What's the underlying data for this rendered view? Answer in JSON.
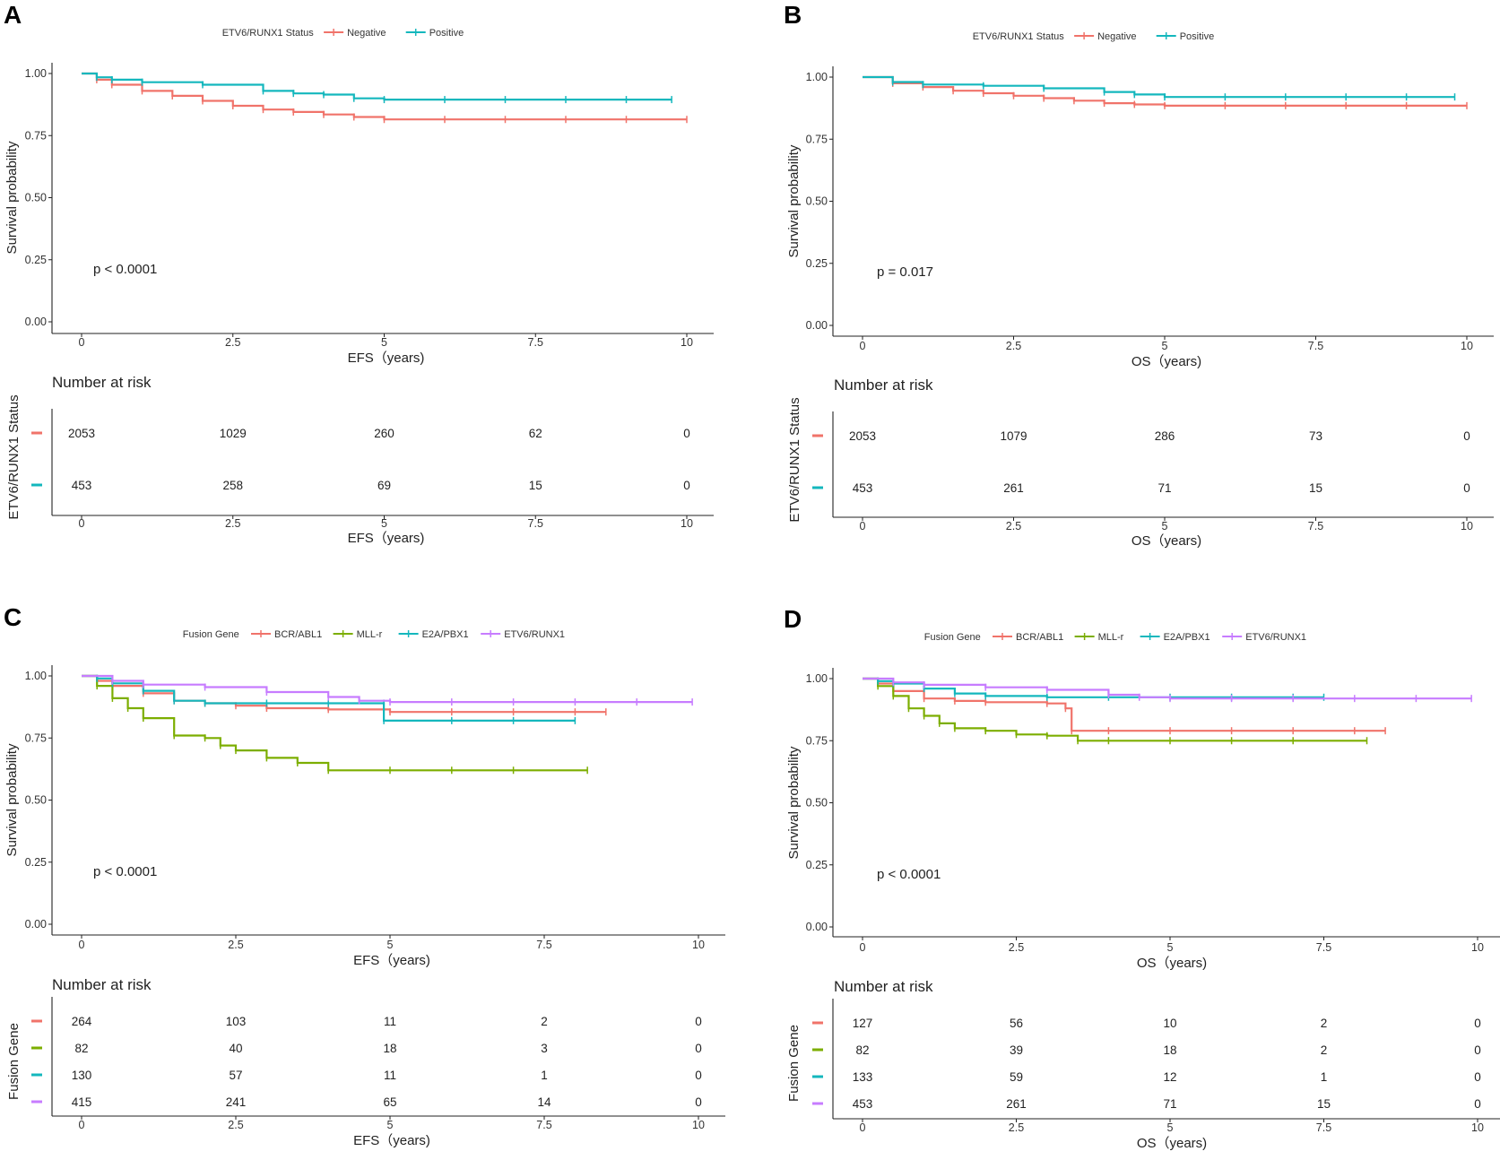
{
  "chart_data": [
    {
      "panel": "A",
      "type": "line",
      "subtype": "kaplan-meier",
      "legend_title": "ETV6/RUNX1 Status",
      "legend_position": "top",
      "series": [
        {
          "name": "Negative",
          "color": "#F0736A",
          "x": [
            0,
            0.25,
            0.5,
            1.0,
            1.5,
            2.0,
            2.5,
            3.0,
            3.5,
            4.0,
            4.5,
            5.0,
            6.0,
            7.0,
            8.0,
            9.0,
            10.0
          ],
          "y": [
            1.0,
            0.975,
            0.955,
            0.93,
            0.91,
            0.89,
            0.87,
            0.855,
            0.845,
            0.835,
            0.825,
            0.815,
            0.815,
            0.815,
            0.815,
            0.815,
            0.815
          ]
        },
        {
          "name": "Positive",
          "color": "#14B7BD",
          "x": [
            0,
            0.25,
            0.5,
            1.0,
            2.0,
            3.0,
            3.5,
            4.0,
            4.5,
            5.0,
            6.0,
            7.0,
            8.0,
            9.0,
            9.75
          ],
          "y": [
            1.0,
            0.985,
            0.975,
            0.965,
            0.955,
            0.93,
            0.92,
            0.915,
            0.9,
            0.895,
            0.895,
            0.895,
            0.895,
            0.895,
            0.895
          ]
        }
      ],
      "xlabel": "EFS（years)",
      "ylabel": "Survival probability",
      "xlim": [
        0,
        10
      ],
      "ylim": [
        0,
        1
      ],
      "xticks": [
        "0",
        "2.5",
        "5",
        "7.5",
        "10"
      ],
      "yticks": [
        "0.00",
        "0.25",
        "0.50",
        "0.75",
        "1.00"
      ],
      "p_value": "p < 0.0001",
      "risk_table": {
        "title": "Number at risk",
        "ylabel": "ETV6/RUNX1 Status",
        "xlabel": "EFS（years)",
        "rows": [
          {
            "series": "Negative",
            "values": [
              "2053",
              "1029",
              "260",
              "62",
              "0"
            ]
          },
          {
            "series": "Positive",
            "values": [
              "453",
              "258",
              "69",
              "15",
              "0"
            ]
          }
        ]
      }
    },
    {
      "panel": "B",
      "type": "line",
      "subtype": "kaplan-meier",
      "legend_title": "ETV6/RUNX1 Status",
      "legend_position": "top",
      "series": [
        {
          "name": "Negative",
          "color": "#F0736A",
          "x": [
            0,
            0.5,
            1.0,
            1.5,
            2.0,
            2.5,
            3.0,
            3.5,
            4.0,
            4.5,
            5.0,
            6.0,
            7.0,
            8.0,
            9.0,
            10.0
          ],
          "y": [
            1.0,
            0.975,
            0.96,
            0.945,
            0.935,
            0.925,
            0.915,
            0.905,
            0.895,
            0.89,
            0.885,
            0.885,
            0.885,
            0.885,
            0.885,
            0.885
          ]
        },
        {
          "name": "Positive",
          "color": "#14B7BD",
          "x": [
            0,
            0.5,
            1.0,
            2.0,
            3.0,
            4.0,
            4.5,
            5.0,
            6.0,
            7.0,
            8.0,
            9.0,
            9.8
          ],
          "y": [
            1.0,
            0.98,
            0.97,
            0.965,
            0.955,
            0.94,
            0.93,
            0.92,
            0.92,
            0.92,
            0.92,
            0.92,
            0.92
          ]
        }
      ],
      "xlabel": "OS（years)",
      "ylabel": "Survival probability",
      "xlim": [
        0,
        10
      ],
      "ylim": [
        0,
        1
      ],
      "xticks": [
        "0",
        "2.5",
        "5",
        "7.5",
        "10"
      ],
      "yticks": [
        "0.00",
        "0.25",
        "0.50",
        "0.75",
        "1.00"
      ],
      "p_value": "p = 0.017",
      "risk_table": {
        "title": "Number at risk",
        "ylabel": "ETV6/RUNX1 Status",
        "xlabel": "OS（years)",
        "rows": [
          {
            "series": "Negative",
            "values": [
              "2053",
              "1079",
              "286",
              "73",
              "0"
            ]
          },
          {
            "series": "Positive",
            "values": [
              "453",
              "261",
              "71",
              "15",
              "0"
            ]
          }
        ]
      }
    },
    {
      "panel": "C",
      "type": "line",
      "subtype": "kaplan-meier",
      "legend_title": "Fusion Gene",
      "legend_position": "top",
      "series": [
        {
          "name": "BCR/ABL1",
          "color": "#F0736A",
          "x": [
            0,
            0.25,
            0.5,
            1.0,
            1.5,
            2.0,
            2.5,
            3.0,
            4.0,
            5.0,
            6.0,
            7.0,
            8.0,
            8.5
          ],
          "y": [
            1.0,
            0.98,
            0.96,
            0.93,
            0.9,
            0.89,
            0.88,
            0.87,
            0.865,
            0.855,
            0.855,
            0.855,
            0.855,
            0.855
          ]
        },
        {
          "name": "MLL-r",
          "color": "#7CAE00",
          "x": [
            0,
            0.25,
            0.5,
            0.75,
            1.0,
            1.5,
            2.0,
            2.25,
            2.5,
            3.0,
            3.5,
            4.0,
            5.0,
            6.0,
            7.0,
            8.2
          ],
          "y": [
            1.0,
            0.96,
            0.91,
            0.87,
            0.83,
            0.76,
            0.75,
            0.72,
            0.7,
            0.67,
            0.65,
            0.62,
            0.62,
            0.62,
            0.62,
            0.62
          ]
        },
        {
          "name": "E2A/PBX1",
          "color": "#14B7BD",
          "x": [
            0,
            0.25,
            0.5,
            1.0,
            1.5,
            2.0,
            3.0,
            4.0,
            4.9,
            4.9,
            6.0,
            7.0,
            8.0
          ],
          "y": [
            1.0,
            0.99,
            0.97,
            0.94,
            0.9,
            0.89,
            0.89,
            0.89,
            0.89,
            0.82,
            0.82,
            0.82,
            0.82
          ]
        },
        {
          "name": "ETV6/RUNX1",
          "color": "#C77CFF",
          "x": [
            0,
            0.5,
            1.0,
            2.0,
            3.0,
            4.0,
            4.5,
            5.0,
            6.0,
            7.0,
            8.0,
            9.0,
            9.9
          ],
          "y": [
            1.0,
            0.98,
            0.965,
            0.955,
            0.935,
            0.915,
            0.9,
            0.895,
            0.895,
            0.895,
            0.895,
            0.895,
            0.895
          ]
        }
      ],
      "xlabel": "EFS（years)",
      "ylabel": "Survival probability",
      "xlim": [
        0,
        10
      ],
      "ylim": [
        0,
        1
      ],
      "xticks": [
        "0",
        "2.5",
        "5",
        "7.5",
        "10"
      ],
      "yticks": [
        "0.00",
        "0.25",
        "0.50",
        "0.75",
        "1.00"
      ],
      "p_value": "p < 0.0001",
      "risk_table": {
        "title": "Number at risk",
        "ylabel": "Fusion Gene",
        "xlabel": "EFS（years)",
        "rows": [
          {
            "series": "BCR/ABL1",
            "values": [
              "264",
              "103",
              "11",
              "2",
              "0"
            ]
          },
          {
            "series": "MLL-r",
            "values": [
              "82",
              "40",
              "18",
              "3",
              "0"
            ]
          },
          {
            "series": "E2A/PBX1",
            "values": [
              "130",
              "57",
              "11",
              "1",
              "0"
            ]
          },
          {
            "series": "ETV6/RUNX1",
            "values": [
              "415",
              "241",
              "65",
              "14",
              "0"
            ]
          }
        ]
      }
    },
    {
      "panel": "D",
      "type": "line",
      "subtype": "kaplan-meier",
      "legend_title": "Fusion Gene",
      "legend_position": "top",
      "series": [
        {
          "name": "BCR/ABL1",
          "color": "#F0736A",
          "x": [
            0,
            0.25,
            0.5,
            1.0,
            1.5,
            2.0,
            3.0,
            3.3,
            3.4,
            3.4,
            4.0,
            5.0,
            6.0,
            7.0,
            8.0,
            8.5
          ],
          "y": [
            1.0,
            0.98,
            0.95,
            0.92,
            0.91,
            0.905,
            0.9,
            0.88,
            0.85,
            0.79,
            0.79,
            0.79,
            0.79,
            0.79,
            0.79,
            0.79
          ]
        },
        {
          "name": "MLL-r",
          "color": "#7CAE00",
          "x": [
            0,
            0.25,
            0.5,
            0.75,
            1.0,
            1.25,
            1.5,
            2.0,
            2.5,
            3.0,
            3.5,
            4.0,
            5.0,
            6.0,
            7.0,
            8.2
          ],
          "y": [
            1.0,
            0.97,
            0.93,
            0.88,
            0.85,
            0.82,
            0.8,
            0.79,
            0.775,
            0.77,
            0.75,
            0.75,
            0.75,
            0.75,
            0.75,
            0.75
          ]
        },
        {
          "name": "E2A/PBX1",
          "color": "#14B7BD",
          "x": [
            0,
            0.25,
            0.5,
            1.0,
            1.5,
            2.0,
            3.0,
            4.0,
            5.0,
            6.0,
            7.0,
            7.5
          ],
          "y": [
            1.0,
            0.99,
            0.98,
            0.96,
            0.94,
            0.93,
            0.925,
            0.925,
            0.925,
            0.925,
            0.925,
            0.925
          ]
        },
        {
          "name": "ETV6/RUNX1",
          "color": "#C77CFF",
          "x": [
            0,
            0.5,
            1.0,
            2.0,
            3.0,
            4.0,
            4.5,
            5.0,
            6.0,
            7.0,
            8.0,
            9.0,
            9.9
          ],
          "y": [
            1.0,
            0.985,
            0.975,
            0.965,
            0.955,
            0.935,
            0.925,
            0.92,
            0.92,
            0.92,
            0.92,
            0.92,
            0.92
          ]
        }
      ],
      "xlabel": "OS（years)",
      "ylabel": "Survival probability",
      "xlim": [
        0,
        10
      ],
      "ylim": [
        0,
        1
      ],
      "xticks": [
        "0",
        "2.5",
        "5",
        "7.5",
        "10"
      ],
      "yticks": [
        "0.00",
        "0.25",
        "0.50",
        "0.75",
        "1.00"
      ],
      "p_value": "p < 0.0001",
      "risk_table": {
        "title": "Number at risk",
        "ylabel": "Fusion Gene",
        "xlabel": "OS（years)",
        "rows": [
          {
            "series": "BCR/ABL1",
            "values": [
              "127",
              "56",
              "10",
              "2",
              "0"
            ]
          },
          {
            "series": "MLL-r",
            "values": [
              "82",
              "39",
              "18",
              "2",
              "0"
            ]
          },
          {
            "series": "E2A/PBX1",
            "values": [
              "133",
              "59",
              "12",
              "1",
              "0"
            ]
          },
          {
            "series": "ETV6/RUNX1",
            "values": [
              "453",
              "261",
              "71",
              "15",
              "0"
            ]
          }
        ]
      }
    }
  ]
}
